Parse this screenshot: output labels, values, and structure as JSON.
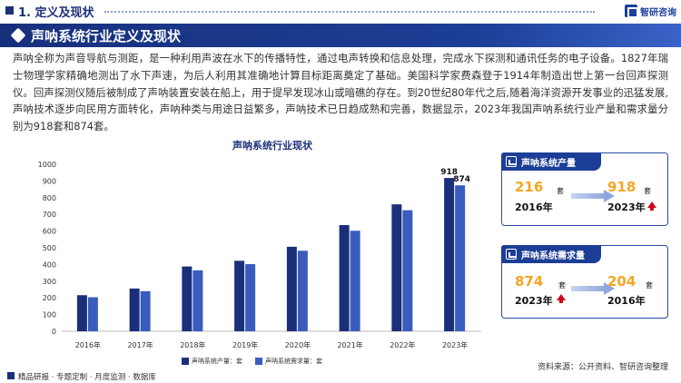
{
  "header": {
    "section": "1. 定义及现状",
    "brand": "智研咨询"
  },
  "banner": {
    "title": "声呐系统行业定义及现状"
  },
  "paragraph": "声呐全称为声音导航与测距，是一种利用声波在水下的传播特性，通过电声转换和信息处理，完成水下探测和通讯任务的电子设备。1827年瑞士物理学家精确地测出了水下声速，为后人利用其准确地计算目标距离奠定了基础。美国科学家费森登于1914年制造出世上第一台回声探测仪。回声探测仪随后被制成了声呐装置安装在船上，用于提早发现冰山或暗礁的存在。到20世纪80年代之后,随着海洋资源开发事业的迅猛发展,声呐技术逐步向民用方面转化，声呐种类与用途日益繁多，声呐技术已日趋成熟和完善，数据显示，2023年我国声呐系统行业产量和需求量分别为918套和874套。",
  "chart_data": {
    "type": "bar",
    "title": "声呐系统行业现状",
    "categories": [
      "2016年",
      "2017年",
      "2018年",
      "2019年",
      "2020年",
      "2021年",
      "2022年",
      "2023年"
    ],
    "series": [
      {
        "name": "声呐系统产量：套",
        "values": [
          216,
          256,
          388,
          422,
          506,
          636,
          760,
          918
        ],
        "color": "#1a2f7a"
      },
      {
        "name": "声呐系统需求量：套",
        "values": [
          204,
          240,
          365,
          402,
          482,
          602,
          725,
          874
        ],
        "color": "#3a5cbd"
      }
    ],
    "ylim": [
      0,
      1000
    ],
    "yticks": [
      0,
      100,
      200,
      300,
      400,
      500,
      600,
      700,
      800,
      900,
      1000
    ],
    "data_labels": {
      "产量2023": "918",
      "需求量2023": "874"
    },
    "legend_position": "bottom"
  },
  "card_production": {
    "title": "声呐系统产量",
    "from_value": "216",
    "from_unit": "套",
    "from_year": "2016年",
    "to_value": "918",
    "to_unit": "套",
    "to_year": "2023年"
  },
  "card_demand": {
    "title": "声呐系统需求量",
    "from_value": "874",
    "from_unit": "套",
    "from_year": "2023年",
    "to_value": "204",
    "to_unit": "套",
    "to_year": "2016年"
  },
  "footer": {
    "left": "精品研报 · 专题定制 · 月度监测 · 数据库",
    "right": "资料来源：公开资料、智研咨询整理"
  }
}
